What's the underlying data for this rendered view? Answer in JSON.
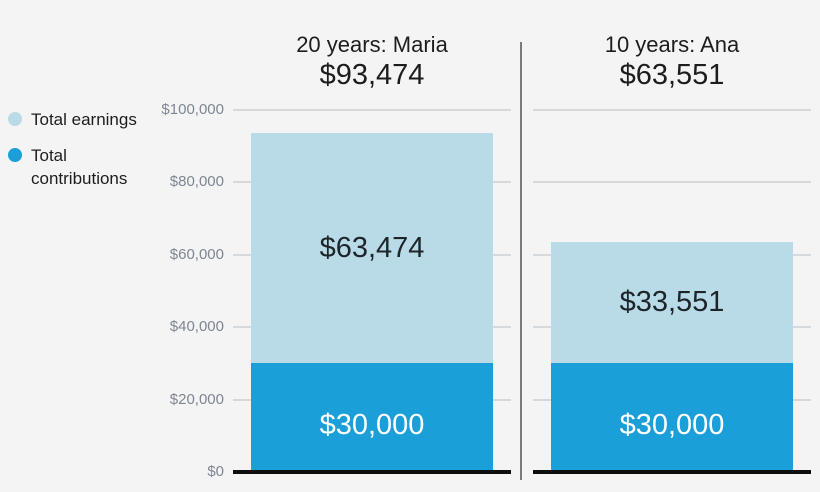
{
  "page": {
    "background": "#f4f4f5"
  },
  "legend": {
    "position": "left",
    "items": [
      {
        "id": "earnings",
        "label": "Total earnings",
        "color": "#b8dbe7"
      },
      {
        "id": "contributions",
        "label": "Total contributions",
        "color": "#1b9fd9"
      }
    ]
  },
  "chart_data": {
    "type": "bar",
    "stacked": true,
    "categories": [
      "20 years: Maria",
      "10 years: Ana"
    ],
    "category_totals": [
      {
        "value": 93474,
        "label": "$93,474"
      },
      {
        "value": 63551,
        "label": "$63,551"
      }
    ],
    "series": [
      {
        "name": "Total contributions",
        "color": "#1b9fd9",
        "values": [
          30000,
          30000
        ],
        "value_labels": [
          "$30,000",
          "$30,000"
        ]
      },
      {
        "name": "Total earnings",
        "color": "#b8dbe7",
        "values": [
          63474,
          33551
        ],
        "value_labels": [
          "$63,474",
          "$33,551"
        ]
      }
    ],
    "y_axis": {
      "min": 0,
      "max": 100000,
      "ticks": [
        {
          "value": 0,
          "label": "$0"
        },
        {
          "value": 20000,
          "label": "$20,000"
        },
        {
          "value": 40000,
          "label": "$40,000"
        },
        {
          "value": 60000,
          "label": "$60,000"
        },
        {
          "value": 80000,
          "label": "$80,000"
        },
        {
          "value": 100000,
          "label": "$100,000"
        }
      ]
    },
    "grid": true,
    "legend_position": "left"
  },
  "colors": {
    "background": "#f4f4f5",
    "earnings": "#b8dbe7",
    "contributions": "#1b9fd9",
    "gridline": "#d6d9dc",
    "axis_line": "#0c0d0f",
    "tick_label": "#7d8691",
    "divider": "#7a7b7f",
    "text_dark": "#1d1d1f",
    "bar_label_on_light": "#1d252b",
    "bar_label_on_dark": "#ffffff"
  }
}
